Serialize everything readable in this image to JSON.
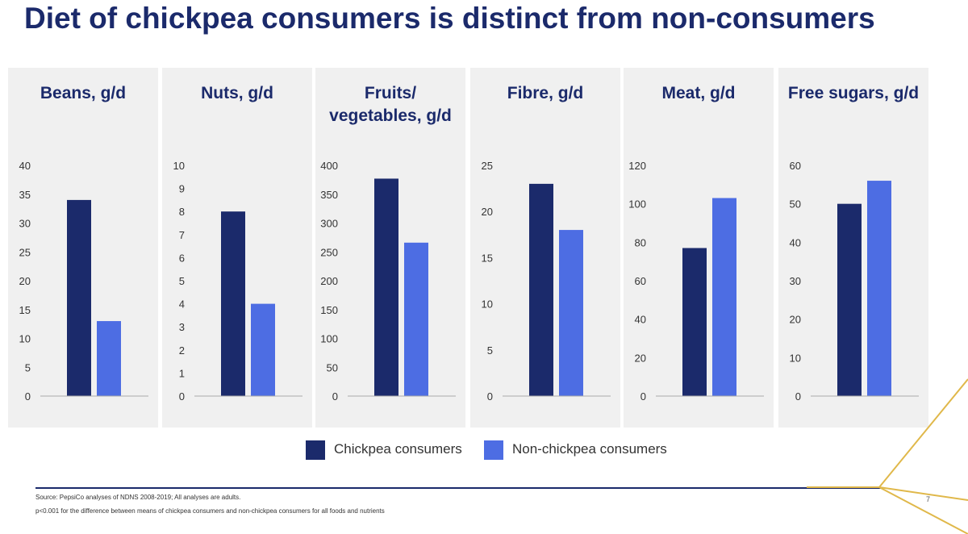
{
  "title": "Diet of chickpea consumers is distinct from non-consumers",
  "colors": {
    "consumers": "#1b2a6b",
    "non_consumers": "#4d6de3",
    "panel_bg": "#f0f0f0",
    "gold": "#e0b84a"
  },
  "chart_data": [
    {
      "type": "bar",
      "title": "Beans, g/d",
      "ylim": [
        0,
        40
      ],
      "ticks": [
        0,
        5,
        10,
        15,
        20,
        25,
        30,
        35,
        40
      ],
      "series": [
        {
          "name": "Chickpea consumers",
          "values": [
            34
          ]
        },
        {
          "name": "Non-chickpea consumers",
          "values": [
            13
          ]
        }
      ]
    },
    {
      "type": "bar",
      "title": "Nuts, g/d",
      "ylim": [
        0,
        10
      ],
      "ticks": [
        0,
        1,
        2,
        3,
        4,
        5,
        6,
        7,
        8,
        9,
        10
      ],
      "series": [
        {
          "name": "Chickpea consumers",
          "values": [
            8
          ]
        },
        {
          "name": "Non-chickpea consumers",
          "values": [
            4
          ]
        }
      ]
    },
    {
      "type": "bar",
      "title": "Fruits/ vegetables, g/d",
      "ylim": [
        0,
        400
      ],
      "ticks": [
        0,
        50,
        100,
        150,
        200,
        250,
        300,
        350,
        400
      ],
      "series": [
        {
          "name": "Chickpea consumers",
          "values": [
            377
          ]
        },
        {
          "name": "Non-chickpea consumers",
          "values": [
            266
          ]
        }
      ]
    },
    {
      "type": "bar",
      "title": "Fibre, g/d",
      "ylim": [
        0,
        25
      ],
      "ticks": [
        0,
        5,
        10,
        15,
        20,
        25
      ],
      "series": [
        {
          "name": "Chickpea consumers",
          "values": [
            23
          ]
        },
        {
          "name": "Non-chickpea consumers",
          "values": [
            18
          ]
        }
      ]
    },
    {
      "type": "bar",
      "title": "Meat, g/d",
      "ylim": [
        0,
        120
      ],
      "ticks": [
        0,
        20,
        40,
        60,
        80,
        100,
        120
      ],
      "series": [
        {
          "name": "Chickpea consumers",
          "values": [
            77
          ]
        },
        {
          "name": "Non-chickpea consumers",
          "values": [
            103
          ]
        }
      ]
    },
    {
      "type": "bar",
      "title": "Free sugars, g/d",
      "ylim": [
        0,
        60
      ],
      "ticks": [
        0,
        10,
        20,
        30,
        40,
        50,
        60
      ],
      "series": [
        {
          "name": "Chickpea consumers",
          "values": [
            50
          ]
        },
        {
          "name": "Non-chickpea consumers",
          "values": [
            56
          ]
        }
      ]
    }
  ],
  "legend": {
    "consumers": "Chickpea consumers",
    "non_consumers": "Non-chickpea consumers"
  },
  "footer": {
    "source": "Source: PepsiCo analyses of NDNS 2008-2019; All analyses are adults.",
    "note": "p<0.001 for the difference between means of chickpea consumers and non-chickpea consumers for all foods and nutrients",
    "page": "7"
  }
}
